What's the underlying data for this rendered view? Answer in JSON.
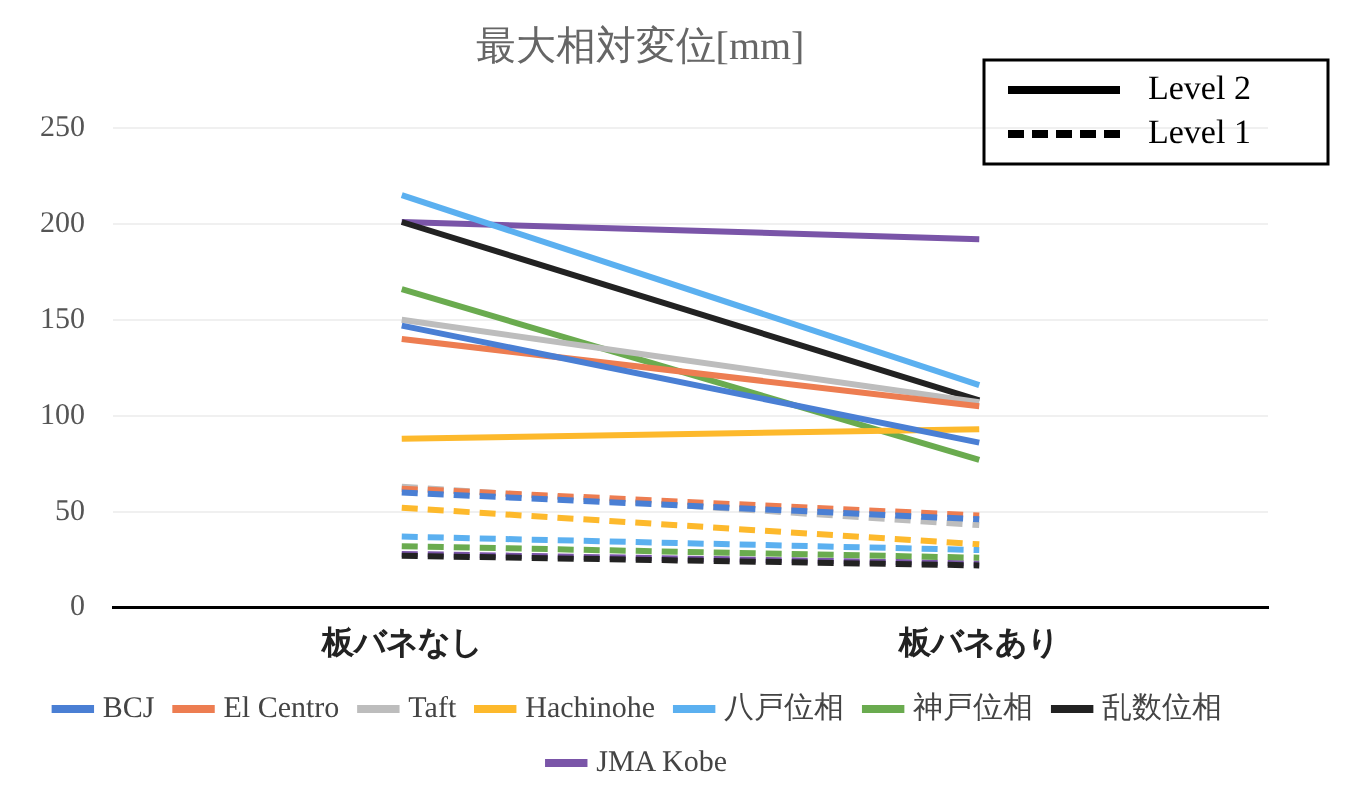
{
  "chart_data": {
    "type": "line",
    "title": "最大相対変位[mm]",
    "categories": [
      "板バネなし",
      "板バネあり"
    ],
    "series": [
      {
        "name": "BCJ",
        "color": "#4a7fd4",
        "values": [
          147,
          86
        ],
        "line_style": "solid"
      },
      {
        "name": "El Centro",
        "color": "#ed7d51",
        "values": [
          140,
          105
        ],
        "line_style": "solid"
      },
      {
        "name": "Taft",
        "color": "#bdbdbd",
        "values": [
          150,
          107
        ],
        "line_style": "solid"
      },
      {
        "name": "Hachinohe",
        "color": "#fdb92c",
        "values": [
          88,
          93
        ],
        "line_style": "solid"
      },
      {
        "name": "八戸位相",
        "color": "#5bb0f0",
        "values": [
          215,
          116
        ],
        "line_style": "solid"
      },
      {
        "name": "神戸位相",
        "color": "#6aab4f",
        "values": [
          166,
          77
        ],
        "line_style": "solid"
      },
      {
        "name": "乱数位相",
        "color": "#222222",
        "values": [
          201,
          108
        ],
        "line_style": "solid"
      },
      {
        "name": "JMA Kobe",
        "color": "#7a55a8",
        "values": [
          201,
          192
        ],
        "line_style": "solid"
      },
      {
        "color": "#4a7fd4",
        "values": [
          60,
          46
        ],
        "line_style": "dashed"
      },
      {
        "color": "#ed7d51",
        "values": [
          62,
          48
        ],
        "line_style": "dashed"
      },
      {
        "color": "#bdbdbd",
        "values": [
          63,
          43
        ],
        "line_style": "dashed"
      },
      {
        "color": "#fdb92c",
        "values": [
          52,
          33
        ],
        "line_style": "dashed"
      },
      {
        "color": "#5bb0f0",
        "values": [
          37,
          30
        ],
        "line_style": "dashed"
      },
      {
        "color": "#6aab4f",
        "values": [
          32,
          26
        ],
        "line_style": "dashed"
      },
      {
        "color": "#222222",
        "values": [
          27,
          22
        ],
        "line_style": "dashed"
      },
      {
        "color": "#7a55a8",
        "values": [
          28,
          23
        ],
        "line_style": "dashed"
      }
    ],
    "annotations": [
      "Level 2",
      "Level 1"
    ],
    "ylim": [
      0,
      250
    ],
    "yticks": [
      0,
      50,
      100,
      150,
      200,
      250
    ],
    "grid": "y",
    "legend": "bottom",
    "marker": "none"
  }
}
